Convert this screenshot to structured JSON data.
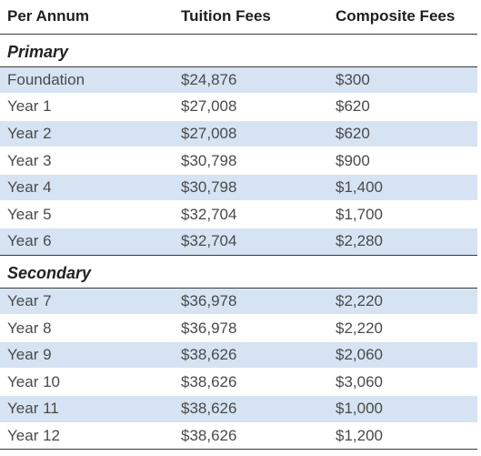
{
  "header": {
    "col1": "Per Annum",
    "col2": "Tuition Fees",
    "col3": "Composite Fees"
  },
  "primary": {
    "title": "Primary",
    "rows": [
      {
        "year": "Foundation",
        "tuition": "$24,876",
        "composite": "$300"
      },
      {
        "year": "Year 1",
        "tuition": "$27,008",
        "composite": "$620"
      },
      {
        "year": "Year 2",
        "tuition": "$27,008",
        "composite": "$620"
      },
      {
        "year": "Year 3",
        "tuition": "$30,798",
        "composite": "$900"
      },
      {
        "year": "Year 4",
        "tuition": "$30,798",
        "composite": "$1,400"
      },
      {
        "year": "Year 5",
        "tuition": "$32,704",
        "composite": "$1,700"
      },
      {
        "year": "Year 6",
        "tuition": "$32,704",
        "composite": "$2,280"
      }
    ]
  },
  "secondary": {
    "title": "Secondary",
    "rows": [
      {
        "year": "Year 7",
        "tuition": "$36,978",
        "composite": "$2,220"
      },
      {
        "year": "Year 8",
        "tuition": "$36,978",
        "composite": "$2,220"
      },
      {
        "year": "Year 9",
        "tuition": "$38,626",
        "composite": "$2,060"
      },
      {
        "year": "Year 10",
        "tuition": "$38,626",
        "composite": "$3,060"
      },
      {
        "year": "Year 11",
        "tuition": "$38,626",
        "composite": "$1,000"
      },
      {
        "year": "Year 12",
        "tuition": "$38,626",
        "composite": "$1,200"
      }
    ]
  },
  "colors": {
    "shade": "#d6e3f3",
    "rule": "#3a3a3a"
  }
}
